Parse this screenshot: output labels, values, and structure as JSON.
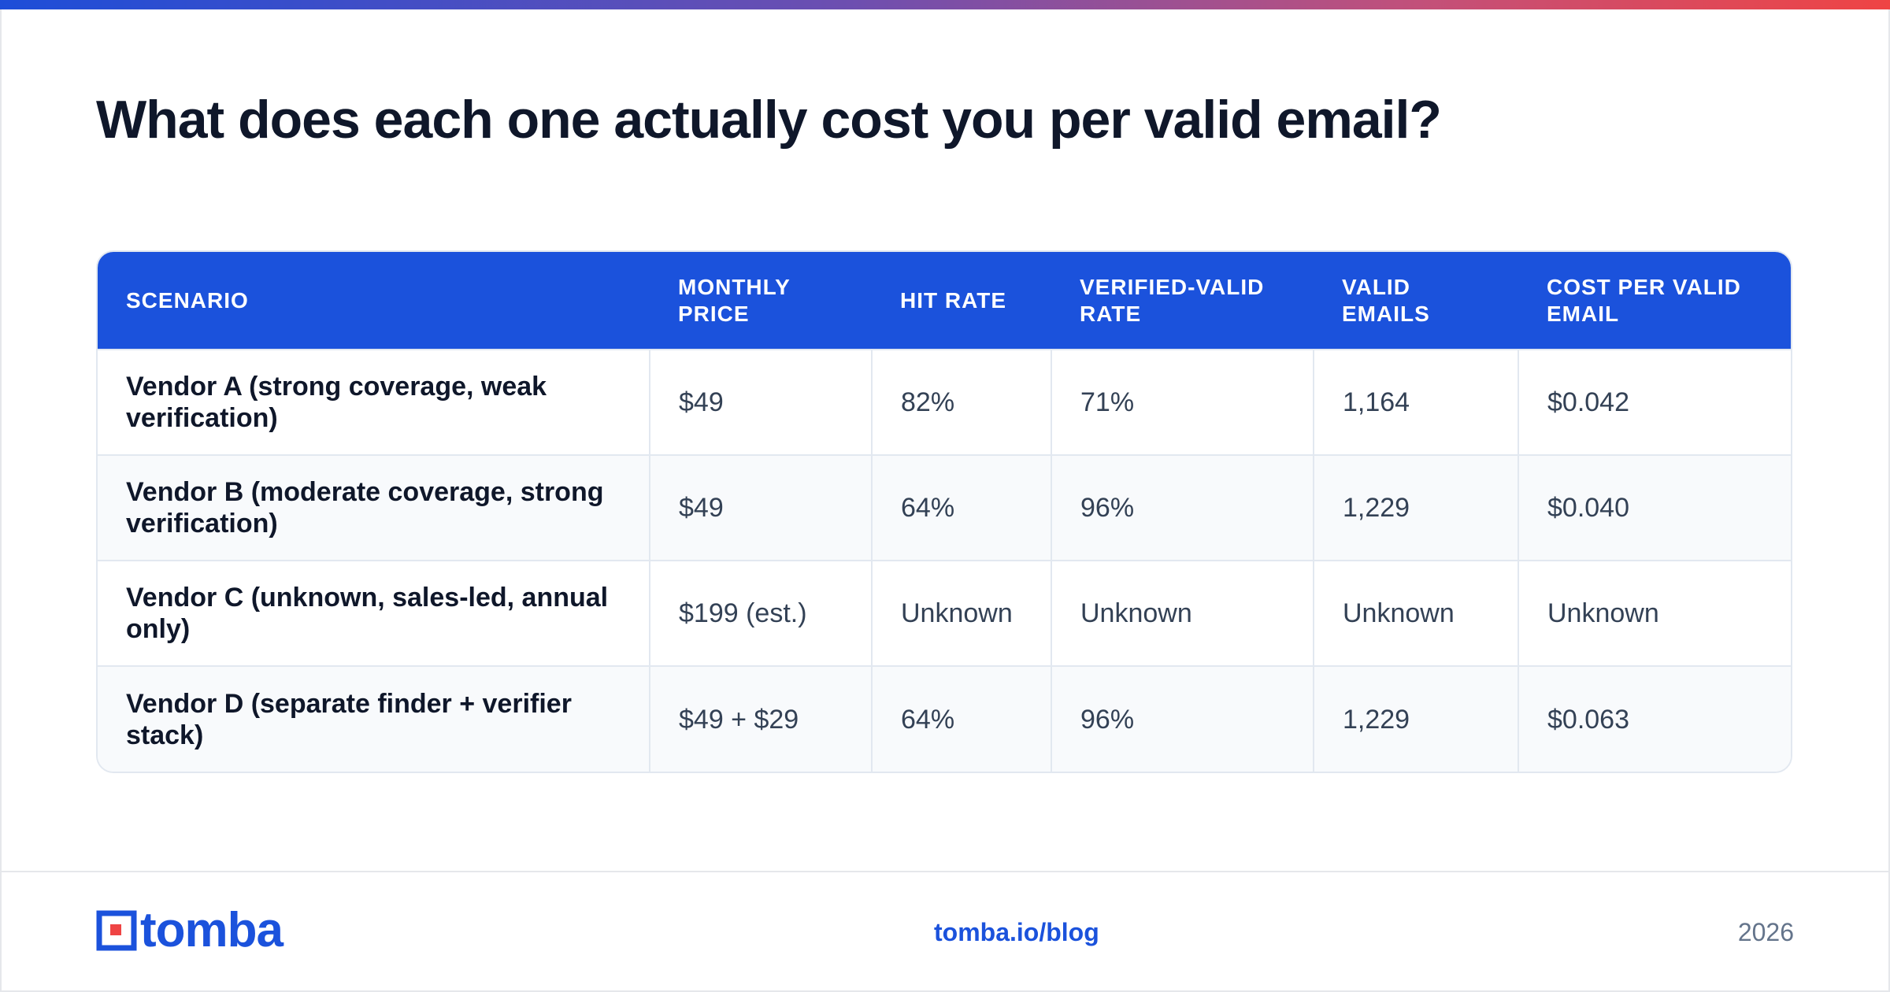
{
  "title": "What does each one actually cost you per valid email?",
  "table": {
    "headers": [
      "SCENARIO",
      "MONTHLY PRICE",
      "HIT RATE",
      "VERIFIED-VALID RATE",
      "VALID EMAILS",
      "COST PER VALID EMAIL"
    ],
    "rows": [
      [
        "Vendor A (strong coverage, weak verification)",
        "$49",
        "82%",
        "71%",
        "1,164",
        "$0.042"
      ],
      [
        "Vendor B (moderate coverage, strong verification)",
        "$49",
        "64%",
        "96%",
        "1,229",
        "$0.040"
      ],
      [
        "Vendor C (unknown, sales-led, annual only)",
        "$199 (est.)",
        "Unknown",
        "Unknown",
        "Unknown",
        "Unknown"
      ],
      [
        "Vendor D (separate finder + verifier stack)",
        "$49 + $29",
        "64%",
        "96%",
        "1,229",
        "$0.063"
      ]
    ]
  },
  "footer": {
    "logo_text": "tomba",
    "logo_icon": "tomba-logo-icon",
    "link": "tomba.io/blog",
    "year": "2026"
  },
  "colors": {
    "accent": "#1b52dc",
    "title": "#0f172a",
    "cell_text": "#334155"
  }
}
